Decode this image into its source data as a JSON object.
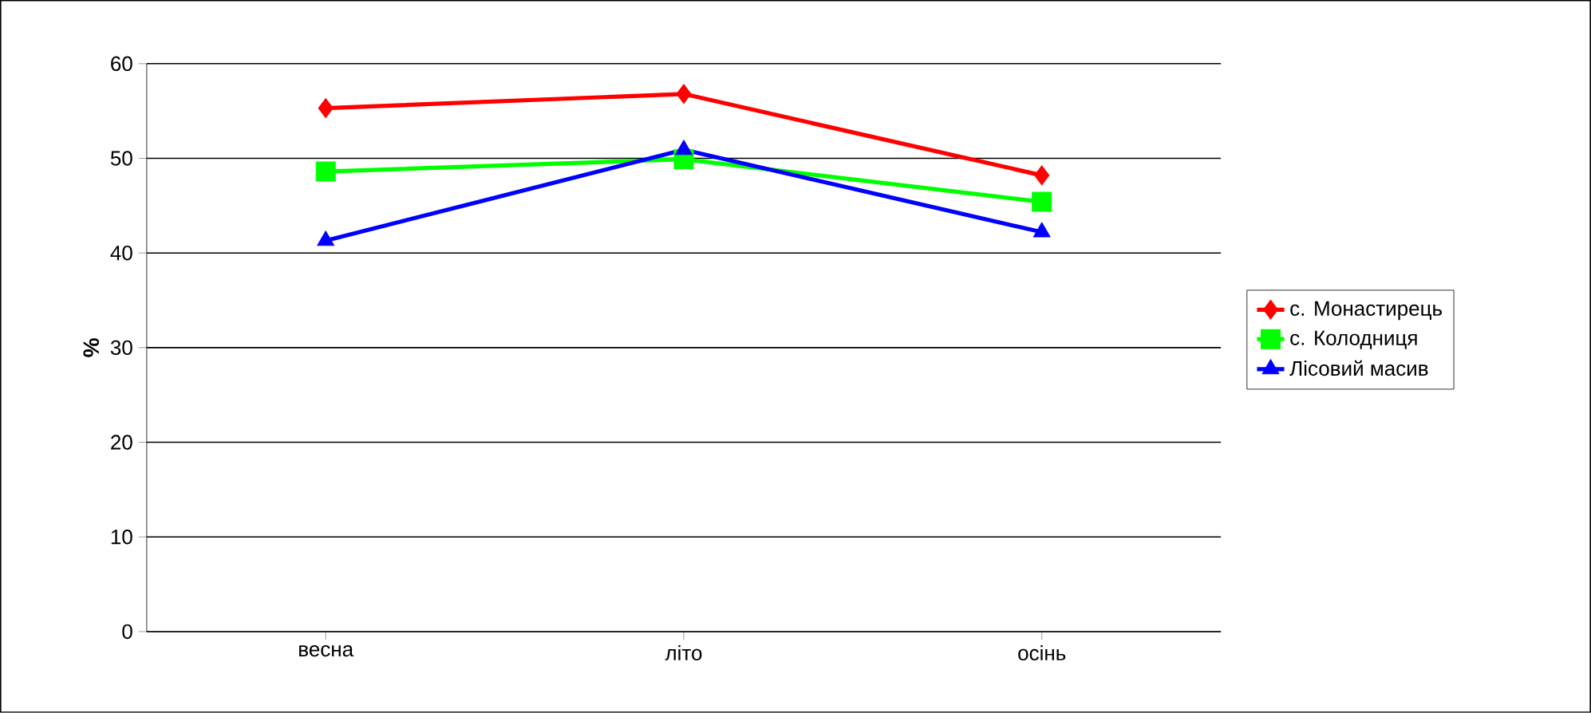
{
  "chart_data": {
    "type": "line",
    "ylabel": "%",
    "categories": [
      "весна",
      "літо",
      "осінь"
    ],
    "series": [
      {
        "name": "с. Монастирець",
        "color": "#ff0000",
        "marker": "diamond",
        "values": [
          55.3,
          56.8,
          48.2
        ]
      },
      {
        "name": "с. Колодниця",
        "color": "#00ff00",
        "marker": "square",
        "values": [
          48.6,
          49.9,
          45.4
        ]
      },
      {
        "name": "Лісовий масив",
        "color": "#0000ff",
        "marker": "triangle",
        "values": [
          41.3,
          50.9,
          42.2
        ]
      }
    ],
    "ylim": [
      0,
      60
    ],
    "yticks": [
      0,
      10,
      20,
      30,
      40,
      50,
      60
    ],
    "grid": "y",
    "legend": "right"
  }
}
